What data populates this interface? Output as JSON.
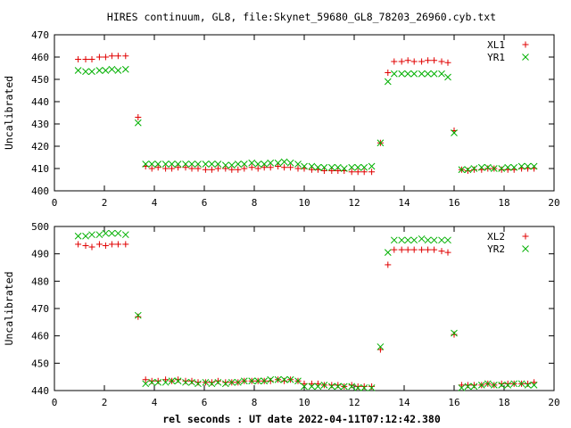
{
  "title": "HIRES continuum, GL8, file:Skynet_59680_GL8_78203_26960.cyb.txt",
  "xlabel": "rel seconds : UT date 2022-04-11T07:12:42.380",
  "colors": {
    "series1": "#e00000",
    "series2": "#00b000",
    "axis": "#000000"
  },
  "chart_data": [
    {
      "type": "scatter",
      "ylabel": "Uncalibrated",
      "xlim": [
        0,
        20
      ],
      "ylim": [
        400,
        470
      ],
      "xticks": [
        0,
        2,
        4,
        6,
        8,
        10,
        12,
        14,
        16,
        18,
        20
      ],
      "yticks": [
        400,
        410,
        420,
        430,
        440,
        450,
        460,
        470
      ],
      "legend_position": "top-right",
      "series": [
        {
          "name": "XL1",
          "marker": "plus",
          "color": "#e00000",
          "x": [
            0.95,
            1.25,
            1.5,
            1.8,
            2.05,
            2.3,
            2.55,
            2.85,
            3.35,
            3.65,
            3.9,
            4.15,
            4.45,
            4.7,
            4.95,
            5.25,
            5.5,
            5.75,
            6.05,
            6.3,
            6.55,
            6.85,
            7.1,
            7.35,
            7.6,
            7.9,
            8.15,
            8.4,
            8.65,
            8.95,
            9.2,
            9.45,
            9.75,
            10.0,
            10.3,
            10.55,
            10.8,
            11.1,
            11.35,
            11.6,
            11.9,
            12.15,
            12.4,
            12.7,
            13.05,
            13.35,
            13.6,
            13.9,
            14.15,
            14.4,
            14.7,
            14.95,
            15.2,
            15.5,
            15.75,
            16.0,
            16.3,
            16.55,
            16.8,
            17.1,
            17.35,
            17.6,
            17.9,
            18.15,
            18.4,
            18.7,
            18.95,
            19.2
          ],
          "y": [
            459,
            459,
            459,
            460,
            460,
            460.5,
            460.5,
            460.5,
            433,
            411,
            410,
            410.5,
            410,
            410,
            410.5,
            410.5,
            410,
            410,
            409.5,
            409.5,
            410,
            410,
            409.5,
            409.5,
            410,
            410.5,
            410,
            410.5,
            410.5,
            411,
            410.5,
            410.5,
            410,
            410,
            409.5,
            409.5,
            409,
            409,
            409,
            409,
            408.5,
            408.5,
            408.5,
            408.5,
            421.5,
            453,
            458,
            458,
            458.5,
            458,
            458,
            458.5,
            458.5,
            458,
            457.5,
            427,
            409.5,
            409,
            409.5,
            409.5,
            410,
            410,
            409.5,
            409.5,
            409.5,
            410,
            410,
            410
          ]
        },
        {
          "name": "YR1",
          "marker": "cross",
          "color": "#00b000",
          "x": [
            0.95,
            1.25,
            1.5,
            1.8,
            2.05,
            2.3,
            2.55,
            2.85,
            3.35,
            3.65,
            3.9,
            4.15,
            4.45,
            4.7,
            4.95,
            5.25,
            5.5,
            5.75,
            6.05,
            6.3,
            6.55,
            6.85,
            7.1,
            7.35,
            7.6,
            7.9,
            8.15,
            8.4,
            8.65,
            8.95,
            9.2,
            9.45,
            9.75,
            10.0,
            10.3,
            10.55,
            10.8,
            11.1,
            11.35,
            11.6,
            11.9,
            12.15,
            12.4,
            12.7,
            13.05,
            13.35,
            13.6,
            13.9,
            14.15,
            14.4,
            14.7,
            14.95,
            15.2,
            15.5,
            15.75,
            16.0,
            16.3,
            16.55,
            16.8,
            17.1,
            17.35,
            17.6,
            17.9,
            18.15,
            18.4,
            18.7,
            18.95,
            19.2
          ],
          "y": [
            454,
            453.5,
            453.5,
            454,
            454,
            454.5,
            454,
            454.5,
            430.5,
            412,
            412,
            412,
            412,
            412,
            412,
            412,
            412,
            412,
            412,
            412,
            412,
            411.5,
            411.5,
            412,
            412,
            412.5,
            412,
            412,
            412.5,
            412.5,
            413,
            412.5,
            412,
            411,
            411,
            410.5,
            410.5,
            410.5,
            410.5,
            410,
            410.5,
            410.5,
            410.5,
            411,
            421.5,
            449,
            452.5,
            452.5,
            452.5,
            452.5,
            452.5,
            452.5,
            452.5,
            452.5,
            451,
            426,
            409.5,
            409.5,
            410,
            410.5,
            410.5,
            410,
            410,
            410.5,
            410.5,
            411,
            411,
            411
          ]
        }
      ]
    },
    {
      "type": "scatter",
      "ylabel": "Uncalibrated",
      "xlim": [
        0,
        20
      ],
      "ylim": [
        440,
        500
      ],
      "xticks": [
        0,
        2,
        4,
        6,
        8,
        10,
        12,
        14,
        16,
        18,
        20
      ],
      "yticks": [
        440,
        450,
        460,
        470,
        480,
        490,
        500
      ],
      "legend_position": "top-right",
      "series": [
        {
          "name": "XL2",
          "marker": "plus",
          "color": "#e00000",
          "x": [
            0.95,
            1.25,
            1.5,
            1.8,
            2.05,
            2.3,
            2.55,
            2.85,
            3.35,
            3.65,
            3.9,
            4.15,
            4.45,
            4.7,
            4.95,
            5.25,
            5.5,
            5.75,
            6.05,
            6.3,
            6.55,
            6.85,
            7.1,
            7.35,
            7.6,
            7.9,
            8.15,
            8.4,
            8.65,
            8.95,
            9.2,
            9.45,
            9.75,
            10.0,
            10.3,
            10.55,
            10.8,
            11.1,
            11.35,
            11.6,
            11.9,
            12.15,
            12.4,
            12.7,
            13.05,
            13.35,
            13.6,
            13.9,
            14.15,
            14.4,
            14.7,
            14.95,
            15.2,
            15.5,
            15.75,
            16.0,
            16.3,
            16.55,
            16.8,
            17.1,
            17.35,
            17.6,
            17.9,
            18.15,
            18.4,
            18.7,
            18.95,
            19.2
          ],
          "y": [
            493.5,
            493,
            492.5,
            493.5,
            493,
            493.5,
            493.5,
            493.5,
            467,
            444,
            443.5,
            443.5,
            444,
            443.5,
            444,
            443.5,
            443.5,
            443,
            443,
            443,
            443.5,
            443,
            443,
            443,
            443.5,
            443.5,
            443.5,
            443.5,
            443.5,
            444,
            443.5,
            444,
            443.5,
            442.5,
            442.5,
            442.5,
            442,
            442,
            442,
            441.5,
            442,
            441.5,
            441.5,
            441.5,
            455,
            486,
            491.5,
            491.5,
            491.5,
            491.5,
            491.5,
            491.5,
            491.5,
            491,
            490.5,
            460.5,
            442,
            442,
            442,
            442,
            442.5,
            442,
            442.5,
            442.5,
            442.5,
            442.5,
            442.5,
            443
          ]
        },
        {
          "name": "YR2",
          "marker": "cross",
          "color": "#00b000",
          "x": [
            0.95,
            1.25,
            1.5,
            1.8,
            2.05,
            2.3,
            2.55,
            2.85,
            3.35,
            3.65,
            3.9,
            4.15,
            4.45,
            4.7,
            4.95,
            5.25,
            5.5,
            5.75,
            6.05,
            6.3,
            6.55,
            6.85,
            7.1,
            7.35,
            7.6,
            7.9,
            8.15,
            8.4,
            8.65,
            8.95,
            9.2,
            9.45,
            9.75,
            10.0,
            10.3,
            10.55,
            10.8,
            11.1,
            11.35,
            11.6,
            11.9,
            12.15,
            12.4,
            12.7,
            13.05,
            13.35,
            13.6,
            13.9,
            14.15,
            14.4,
            14.7,
            14.95,
            15.2,
            15.5,
            15.75,
            16.0,
            16.3,
            16.55,
            16.8,
            17.1,
            17.35,
            17.6,
            17.9,
            18.15,
            18.4,
            18.7,
            18.95,
            19.2
          ],
          "y": [
            496.5,
            496.5,
            497,
            497,
            497.5,
            497.5,
            497.5,
            497,
            467.5,
            442.5,
            443,
            443,
            443,
            443.5,
            443.5,
            443,
            443,
            442.5,
            443,
            442.5,
            443,
            442.5,
            443,
            443,
            443.5,
            443.5,
            443.5,
            443.5,
            444,
            444,
            444,
            444,
            443.5,
            441.5,
            441.5,
            441.5,
            442,
            441.5,
            441.5,
            441.5,
            441.5,
            441,
            441,
            441,
            456,
            490.5,
            495,
            495,
            495,
            495,
            495.5,
            495,
            495,
            495,
            495,
            461,
            441,
            441.5,
            441.5,
            442,
            442.5,
            442,
            442,
            442,
            442.5,
            442.5,
            442,
            442
          ]
        }
      ]
    }
  ]
}
